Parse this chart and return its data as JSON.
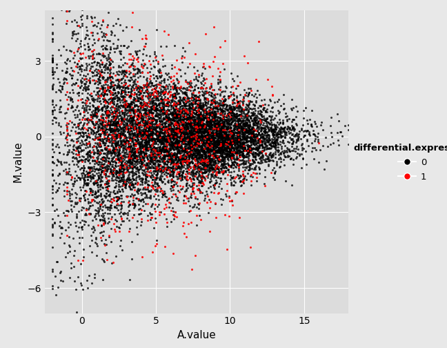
{
  "title": "",
  "xlabel": "A.value",
  "ylabel": "M.value",
  "plot_bg_color": "#DCDCDC",
  "fig_bg_color": "#E8E8E8",
  "legend_bg_color": "#E8E8E8",
  "grid_color": "#FFFFFF",
  "color_0": "#000000",
  "color_1": "#FF0000",
  "legend_title": "differential.expression",
  "legend_labels": [
    "0",
    "1"
  ],
  "point_size": 5,
  "alpha_0": 0.75,
  "alpha_1": 0.85,
  "xlim": [
    -2.5,
    18
  ],
  "ylim": [
    -7,
    5
  ],
  "xticks": [
    0,
    5,
    10,
    15
  ],
  "yticks": [
    -6,
    -3,
    0,
    3
  ],
  "n_non_de": 10000,
  "n_de": 1000,
  "seed": 42
}
